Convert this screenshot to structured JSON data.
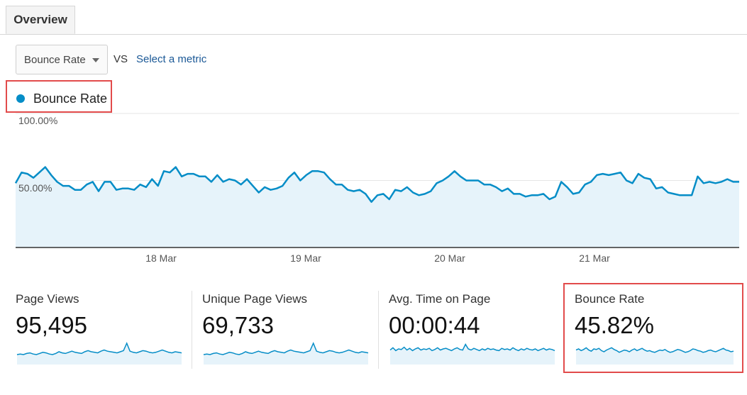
{
  "tabs": [
    {
      "label": "Overview"
    }
  ],
  "controls": {
    "metric_select": {
      "value": "Bounce Rate"
    },
    "vs_label": "VS",
    "second_metric_link": "Select a metric"
  },
  "legend": {
    "label": "Bounce Rate",
    "color": "#058dc7"
  },
  "chart_data": {
    "type": "area",
    "series": [
      {
        "name": "Bounce Rate",
        "color": "#058dc7",
        "fill": "#e6f3fa",
        "values": [
          48,
          56,
          55,
          52,
          56,
          60,
          54,
          49,
          46,
          46,
          43,
          43,
          47,
          49,
          42,
          49,
          49,
          43,
          44,
          44,
          43,
          47,
          45,
          51,
          46,
          57,
          56,
          60,
          53,
          55,
          55,
          53,
          53,
          49,
          54,
          49,
          51,
          50,
          47,
          51,
          46,
          41,
          45,
          43,
          44,
          46,
          52,
          56,
          50,
          54,
          57,
          57,
          56,
          51,
          47,
          47,
          43,
          42,
          43,
          40,
          34,
          39,
          40,
          36,
          43,
          42,
          45,
          41,
          39,
          40,
          42,
          48,
          50,
          53,
          57,
          53,
          50,
          50,
          50,
          47,
          47,
          45,
          42,
          44,
          40,
          40,
          38,
          39,
          39,
          40,
          36,
          38,
          49,
          45,
          40,
          41,
          47,
          49,
          54,
          55,
          54,
          55,
          56,
          50,
          48,
          55,
          52,
          51,
          44,
          45,
          41,
          40,
          39,
          39,
          39,
          53,
          48,
          49,
          48,
          49,
          51,
          49,
          49
        ]
      }
    ],
    "x_ticks": [
      "18 Mar",
      "19 Mar",
      "20 Mar",
      "21 Mar"
    ],
    "y_ticks": [
      "100.00%",
      "50.00%"
    ],
    "ylim": [
      0,
      100
    ],
    "grid": true
  },
  "stats": [
    {
      "label": "Page Views",
      "value": "95,495",
      "spark": [
        40,
        41,
        40,
        42,
        43,
        41,
        40,
        42,
        44,
        43,
        41,
        40,
        42,
        45,
        43,
        42,
        44,
        46,
        44,
        43,
        42,
        45,
        47,
        45,
        44,
        43,
        46,
        48,
        46,
        45,
        44,
        43,
        45,
        47,
        60,
        46,
        44,
        43,
        45,
        47,
        46,
        44,
        43,
        44,
        46,
        48,
        46,
        44,
        43,
        45,
        44,
        43
      ]
    },
    {
      "label": "Unique Page Views",
      "value": "69,733",
      "spark": [
        40,
        41,
        40,
        42,
        43,
        41,
        40,
        42,
        44,
        43,
        41,
        40,
        42,
        45,
        43,
        42,
        44,
        46,
        44,
        43,
        42,
        45,
        47,
        45,
        44,
        43,
        46,
        48,
        46,
        45,
        44,
        43,
        45,
        47,
        60,
        46,
        44,
        43,
        45,
        47,
        46,
        44,
        43,
        44,
        46,
        48,
        46,
        44,
        43,
        45,
        44,
        43
      ]
    },
    {
      "label": "Avg. Time on Page",
      "value": "00:00:44",
      "spark": [
        48,
        52,
        47,
        50,
        49,
        53,
        48,
        51,
        47,
        50,
        52,
        48,
        50,
        49,
        51,
        47,
        49,
        52,
        48,
        50,
        51,
        49,
        47,
        50,
        52,
        49,
        48,
        58,
        50,
        48,
        51,
        49,
        47,
        50,
        48,
        51,
        49,
        50,
        48,
        47,
        51,
        49,
        50,
        48,
        52,
        49,
        47,
        50,
        48,
        51,
        49,
        48,
        50,
        47,
        49,
        51,
        48,
        50,
        49,
        47
      ]
    },
    {
      "label": "Bounce Rate",
      "value": "45.82%",
      "spark": [
        48,
        50,
        47,
        49,
        52,
        48,
        46,
        50,
        49,
        51,
        47,
        45,
        48,
        50,
        52,
        49,
        47,
        44,
        46,
        48,
        47,
        45,
        48,
        50,
        47,
        49,
        51,
        48,
        46,
        47,
        45,
        44,
        46,
        48,
        47,
        49,
        46,
        44,
        45,
        47,
        49,
        48,
        46,
        44,
        45,
        47,
        50,
        49,
        47,
        46,
        44,
        45,
        47,
        48,
        46,
        45,
        47,
        49,
        51,
        48,
        47,
        45,
        46
      ]
    }
  ]
}
